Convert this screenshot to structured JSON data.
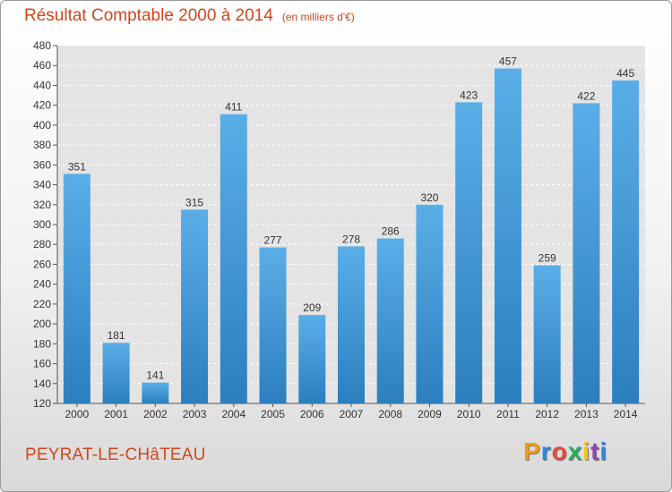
{
  "chart_data": {
    "type": "bar",
    "title": "Résultat Comptable 2000 à 2014",
    "subtitle": "(en milliers d'€)",
    "categories": [
      "2000",
      "2001",
      "2002",
      "2003",
      "2004",
      "2005",
      "2006",
      "2007",
      "2008",
      "2009",
      "2010",
      "2011",
      "2012",
      "2013",
      "2014"
    ],
    "values": [
      351,
      181,
      141,
      315,
      411,
      277,
      209,
      278,
      286,
      320,
      423,
      457,
      259,
      422,
      445
    ],
    "ylim": [
      120,
      480
    ],
    "yticks": [
      120,
      140,
      160,
      180,
      200,
      220,
      240,
      260,
      280,
      300,
      320,
      340,
      360,
      380,
      400,
      420,
      440,
      460,
      480
    ],
    "grid": true,
    "bar_color": "#3b95d6"
  },
  "place_name": "PEYRAT-LE-CHâTEAU",
  "logo": {
    "letters": [
      "P",
      "r",
      "o",
      "x",
      "i",
      "t",
      "i"
    ],
    "colors": [
      "#f39c12",
      "#2e86de",
      "#e74c3c",
      "#27ae60",
      "#f1c40f",
      "#8e44ad",
      "#2e86de"
    ]
  }
}
